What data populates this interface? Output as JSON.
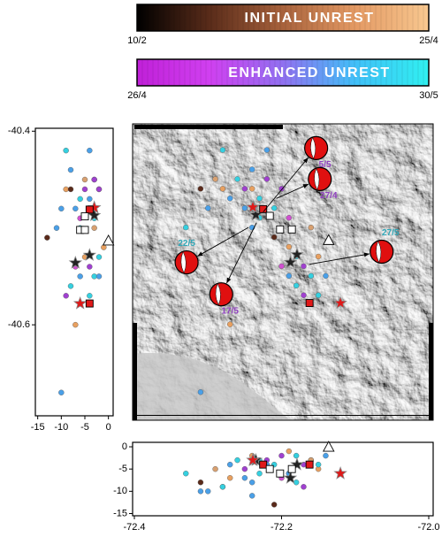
{
  "chart_data": [
    {
      "type": "colorbar",
      "title": "INITIAL UNREST",
      "start_label": "10/2",
      "end_label": "25/4",
      "colors": [
        "#000000",
        "#5a2c1a",
        "#a8623c",
        "#e49a64",
        "#f8c890"
      ]
    },
    {
      "type": "colorbar",
      "title": "ENHANCED UNREST",
      "start_label": "26/4",
      "end_label": "30/5",
      "colors": [
        "#c020d8",
        "#d040f0",
        "#9070f0",
        "#40c0f8",
        "#30f0f0"
      ]
    },
    {
      "type": "map",
      "xlim": [
        -72.4024,
        -71.994
      ],
      "ylim": [
        -40.699,
        -40.393
      ],
      "series": [
        {
          "marker": "circle",
          "x": [
            -72.26,
            -72.25,
            -72.24,
            -72.27,
            -72.23,
            -72.22,
            -72.25,
            -72.28,
            -72.21,
            -72.2,
            -72.19,
            -72.24,
            -72.29,
            -72.23,
            -72.3,
            -72.31,
            -72.18,
            -72.17,
            -72.19,
            -72.16,
            -72.15,
            -72.18,
            -72.2,
            -72.14,
            -72.17,
            -72.15,
            -72.19,
            -72.27,
            -72.31,
            -72.33,
            -72.22,
            -72.28,
            -72.16,
            -72.24,
            -72.21
          ],
          "y": [
            -40.45,
            -40.46,
            -40.46,
            -40.47,
            -40.47,
            -40.45,
            -40.48,
            -40.46,
            -40.48,
            -40.46,
            -40.49,
            -40.44,
            -40.45,
            -40.49,
            -40.48,
            -40.46,
            -40.53,
            -40.54,
            -40.55,
            -40.55,
            -40.53,
            -40.56,
            -40.54,
            -40.55,
            -40.57,
            -40.57,
            -40.52,
            -40.6,
            -40.67,
            -40.5,
            -40.42,
            -40.42,
            -40.5,
            -40.5,
            -40.51
          ],
          "depth": [
            -3,
            -5,
            -2,
            -4,
            -6,
            -3,
            -7,
            -9,
            -4,
            -2,
            -6,
            -8,
            -5,
            -3,
            -10,
            -8,
            -2,
            -4,
            -6,
            -3,
            -5,
            -8,
            -7,
            -2,
            -9,
            -4,
            -1,
            -7,
            -10,
            -6,
            -4,
            -9,
            -3,
            -11,
            -13
          ],
          "colors": [
            "#35d0e0",
            "#a040d0",
            "#e8a060",
            "#4aa0e8",
            "#35d0e0",
            "#a040d0",
            "#4aa0e8",
            "#e8a060",
            "#35d0e0",
            "#a040d0",
            "#d050d0",
            "#4aa0e8",
            "#d8a070",
            "#35d0e0",
            "#4aa0e8",
            "#5a2a1a",
            "#35d0e0",
            "#a040d0",
            "#4aa0e8",
            "#35d0e0",
            "#e8a060",
            "#35d0e0",
            "#d050d0",
            "#4aa0e8",
            "#a040d0",
            "#35d0e0",
            "#e8a060",
            "#e8a060",
            "#4aa0e8",
            "#35d0e0",
            "#4aa0e8",
            "#35d0e0",
            "#d8a070",
            "#4aa0e8",
            "#5a2a1a"
          ]
        },
        {
          "marker": "star",
          "color": "#222222",
          "x": [
            -72.238,
            -72.235,
            -72.179,
            -72.188
          ],
          "y": [
            -40.479,
            -40.487,
            -40.528,
            -40.536
          ],
          "depth": [
            -3,
            -3,
            -4,
            -7
          ]
        },
        {
          "marker": "star",
          "color": "#e01818",
          "x": [
            -72.239,
            -72.12
          ],
          "y": [
            -40.479,
            -40.578
          ],
          "depth": [
            -3,
            -6
          ]
        },
        {
          "marker": "square",
          "color": "#e01818",
          "x": [
            -72.225,
            -72.162
          ],
          "y": [
            -40.481,
            -40.578
          ],
          "depth": [
            -4,
            -4
          ]
        },
        {
          "marker": "square",
          "color": "#ffffff",
          "x": [
            -72.216,
            -72.202,
            -72.186
          ],
          "y": [
            -40.488,
            -40.502,
            -40.502
          ],
          "depth": [
            -5,
            -6,
            -5
          ]
        },
        {
          "marker": "triangle",
          "color": "#ffffff",
          "x": [
            -72.136
          ],
          "y": [
            -40.513
          ],
          "depth": [
            0
          ]
        }
      ],
      "focal_mechanisms": {
        "x": [
          -72.153,
          -72.148,
          -72.329,
          -72.282,
          -72.064
        ],
        "y": [
          -40.418,
          -40.45,
          -40.536,
          -40.569,
          -40.525
        ],
        "event_x": [
          -72.225,
          -72.207,
          -72.245,
          -72.234,
          -72.162
        ],
        "event_y": [
          -40.484,
          -40.47,
          -40.5,
          -40.495,
          -40.538
        ],
        "labels": [
          "5/5",
          "27/4",
          "22/5",
          "17/5",
          "27/5"
        ],
        "label_colors": [
          "#9040c0",
          "#9040c0",
          "#30a8b8",
          "#9040c0",
          "#30a8b8"
        ]
      }
    },
    {
      "type": "section",
      "xlim": [
        -15.5,
        1
      ],
      "ylim": [
        -40.694,
        -40.397
      ],
      "xticks": [
        -15,
        -10,
        -5,
        0
      ],
      "yticks": [
        -40.4,
        -40.6
      ]
    },
    {
      "type": "section",
      "xlim": [
        -72.4024,
        -71.994
      ],
      "ylim": [
        -15.5,
        1
      ],
      "xticks": [
        {
          "value": -72.4,
          "label": "-72.4"
        },
        {
          "value": -72.2,
          "label": "-72.2"
        },
        {
          "value": -72,
          "label": "-72.0"
        }
      ],
      "yticks": [
        0,
        -5,
        -10,
        -15
      ]
    }
  ]
}
